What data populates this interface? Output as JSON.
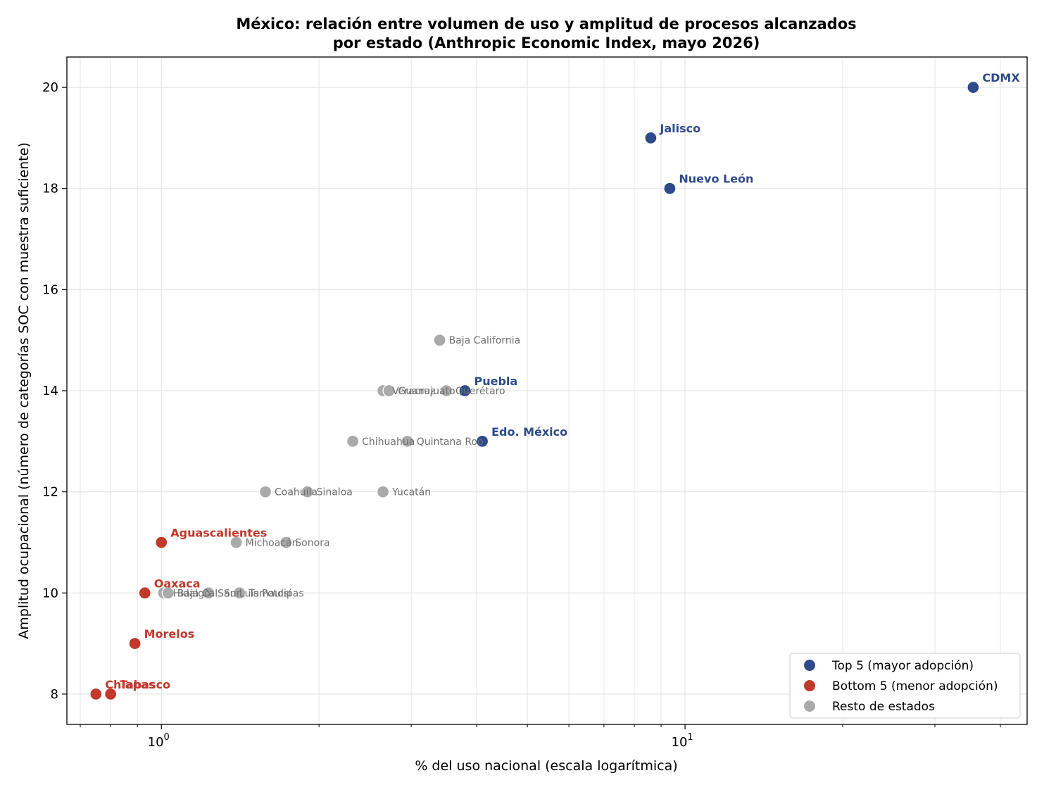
{
  "chart_data": {
    "type": "scatter",
    "title_lines": [
      "México: relación entre volumen de uso y amplitud de procesos alcanzados",
      "por estado (Anthropic Economic Index, mayo 2026)"
    ],
    "xlabel": "% del uso nacional (escala logarítmica)",
    "ylabel": "Amplitud ocupacional (número de categorías SOC con muestra suficiente)",
    "xscale": "log",
    "xlim": [
      0.66,
      45
    ],
    "ylim": [
      7.4,
      20.6
    ],
    "xticks": [
      {
        "value": 1,
        "base": "10",
        "exp": "0"
      },
      {
        "value": 10,
        "base": "10",
        "exp": "1"
      }
    ],
    "yticks": [
      8,
      10,
      12,
      14,
      16,
      18,
      20
    ],
    "grid": true,
    "legend_position": "lower-right",
    "colors": {
      "top": "#2e4a8a",
      "bottom": "#c0392b",
      "rest": "#aaaaaa"
    },
    "series": [
      {
        "key": "top",
        "name": "Top 5 (mayor adopción)",
        "points": [
          {
            "label": "CDMX",
            "x": 35.5,
            "y": 20
          },
          {
            "label": "Jalisco",
            "x": 8.6,
            "y": 19
          },
          {
            "label": "Nuevo León",
            "x": 9.35,
            "y": 18
          },
          {
            "label": "Puebla",
            "x": 3.8,
            "y": 14
          },
          {
            "label": "Edo. México",
            "x": 4.1,
            "y": 13
          }
        ]
      },
      {
        "key": "bottom",
        "name": "Bottom 5 (menor adopción)",
        "points": [
          {
            "label": "Aguascalientes",
            "x": 1.0,
            "y": 11
          },
          {
            "label": "Oaxaca",
            "x": 0.93,
            "y": 10
          },
          {
            "label": "Morelos",
            "x": 0.89,
            "y": 9
          },
          {
            "label": "Chiapas",
            "x": 0.75,
            "y": 8
          },
          {
            "label": "Tabasco",
            "x": 0.8,
            "y": 8
          }
        ]
      },
      {
        "key": "rest",
        "name": "Resto de estados",
        "points": [
          {
            "label": "Baja California",
            "x": 3.4,
            "y": 15
          },
          {
            "label": "Veracruz",
            "x": 2.65,
            "y": 14
          },
          {
            "label": "Guanajuato",
            "x": 2.72,
            "y": 14
          },
          {
            "label": "Querétaro",
            "x": 3.5,
            "y": 14
          },
          {
            "label": "Chihuahua",
            "x": 2.32,
            "y": 13
          },
          {
            "label": "Quintana Roo",
            "x": 2.95,
            "y": 13
          },
          {
            "label": "Coahuila",
            "x": 1.58,
            "y": 12
          },
          {
            "label": "Sinaloa",
            "x": 1.9,
            "y": 12
          },
          {
            "label": "Yucatán",
            "x": 2.65,
            "y": 12
          },
          {
            "label": "Michoacán",
            "x": 1.39,
            "y": 11
          },
          {
            "label": "Sonora",
            "x": 1.73,
            "y": 11
          },
          {
            "label": "Hidalgo",
            "x": 1.01,
            "y": 10
          },
          {
            "label": "Baja Cal. Sur",
            "x": 1.03,
            "y": 10
          },
          {
            "label": "San Luis Potosí",
            "x": 1.23,
            "y": 10
          },
          {
            "label": "Tamaulipas",
            "x": 1.41,
            "y": 10
          }
        ]
      }
    ]
  }
}
